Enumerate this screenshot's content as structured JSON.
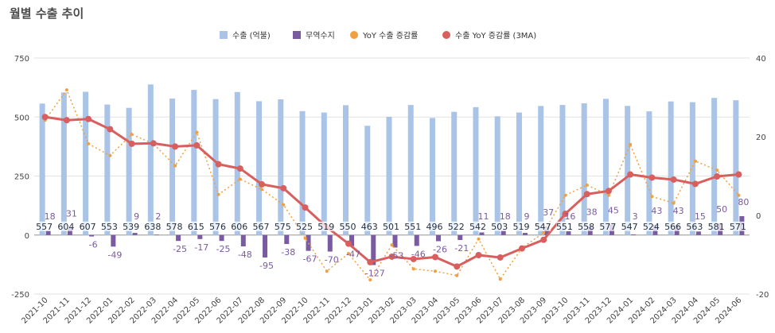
{
  "chart_data": {
    "type": "bar",
    "title": "월별 수출 추이",
    "categories": [
      "2021-10",
      "2021-11",
      "2021-12",
      "2022-01",
      "2022-02",
      "2022-03",
      "2022-04",
      "2022-05",
      "2022-06",
      "2022-07",
      "2022-08",
      "2022-09",
      "2022-10",
      "2022-11",
      "2022-12",
      "2023-01",
      "2023-02",
      "2023-03",
      "2023-04",
      "2023-05",
      "2023-06",
      "2023-07",
      "2023-08",
      "2023-09",
      "2023-10",
      "2023-11",
      "2023-12",
      "2024-01",
      "2024-02",
      "2024-03",
      "2024-04",
      "2024-05",
      "2024-06"
    ],
    "series": [
      {
        "name": "수출 (억불)",
        "type": "bar",
        "axis": "left",
        "color": "#a9c4e6",
        "values": [
          557,
          604,
          607,
          553,
          539,
          638,
          578,
          615,
          576,
          606,
          567,
          575,
          525,
          519,
          550,
          463,
          501,
          551,
          496,
          522,
          542,
          503,
          519,
          547,
          551,
          558,
          577,
          547,
          524,
          566,
          563,
          581,
          571
        ]
      },
      {
        "name": "무역수지",
        "type": "bar",
        "axis": "left",
        "color": "#7a5aa0",
        "values": [
          18,
          31,
          -6,
          -49,
          9,
          2,
          -25,
          -17,
          -25,
          -48,
          -95,
          -38,
          -67,
          -70,
          -47,
          -127,
          -53,
          -46,
          -26,
          -21,
          11,
          18,
          9,
          37,
          16,
          38,
          45,
          3,
          43,
          43,
          15,
          50,
          80
        ]
      },
      {
        "name": "YoY 수출 증감률",
        "type": "line",
        "axis": "right",
        "color": "#f0a040",
        "dashed": true,
        "values": [
          24.2,
          31.9,
          18.2,
          15.2,
          20.6,
          18.2,
          12.6,
          21.1,
          5.3,
          9.2,
          6.6,
          2.7,
          -5.8,
          -14.2,
          -9.7,
          -16.4,
          -7.5,
          -13.6,
          -14.2,
          -15.3,
          -6.0,
          -16.2,
          -8.3,
          -4.4,
          5.1,
          7.7,
          5.1,
          18.0,
          4.8,
          3.1,
          13.8,
          11.5,
          5.1
        ]
      },
      {
        "name": "수출 YoY 증감률 (3MA)",
        "type": "line",
        "axis": "right",
        "color": "#d95f5f",
        "values": [
          25.0,
          24.2,
          24.5,
          21.9,
          18.2,
          18.3,
          17.5,
          17.8,
          13.0,
          11.9,
          7.9,
          6.9,
          2.0,
          -3.0,
          -7.2,
          -11.9,
          -10.5,
          -11.1,
          -10.6,
          -13.0,
          -10.1,
          -10.7,
          -8.4,
          -6.2,
          0.4,
          5.4,
          6.2,
          10.4,
          9.6,
          9.1,
          8.0,
          9.9,
          10.4
        ]
      }
    ],
    "left_axis": {
      "ylim": [
        -250,
        750
      ],
      "ticks": [
        -250,
        0,
        250,
        500,
        750
      ]
    },
    "right_axis": {
      "ylim": [
        -20,
        40
      ],
      "ticks": [
        -20,
        0,
        20,
        40
      ]
    },
    "legend": [
      "수출 (억불)",
      "무역수지",
      "YoY 수출 증감률",
      "수출 YoY 증감률 (3MA)"
    ],
    "legend_position": "top-center",
    "grid": true
  }
}
